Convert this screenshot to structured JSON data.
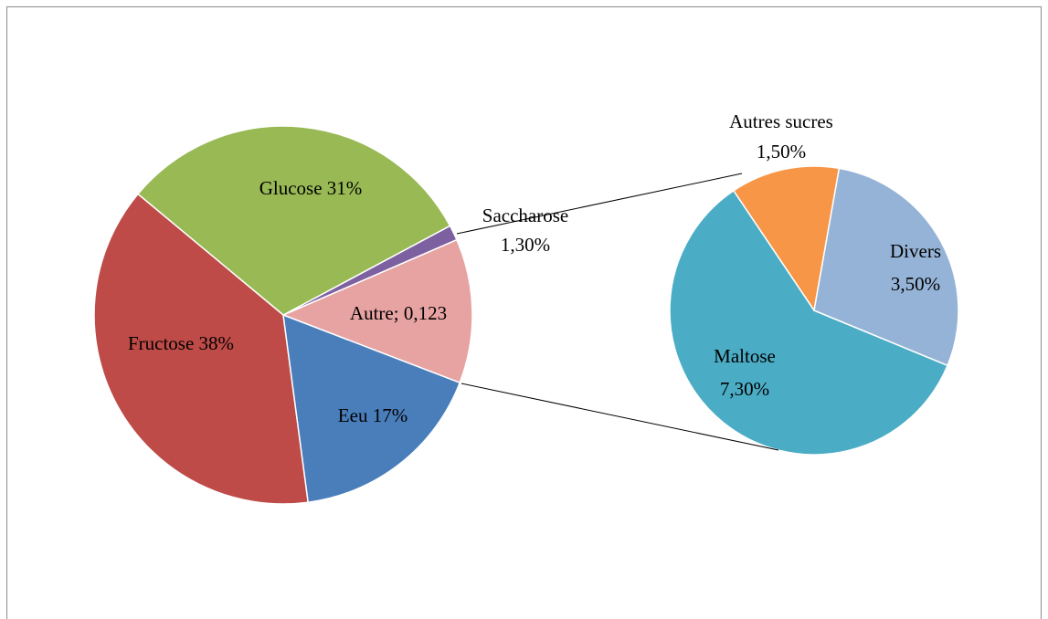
{
  "chart_data": {
    "type": "pie-of-pie",
    "pies": [
      {
        "values": [
          17,
          38,
          31,
          1.3,
          12.3
        ],
        "value_labels": [
          [
            "Eeu 17%"
          ],
          [
            "Fructose 38%"
          ],
          [
            "Glucose 31%"
          ],
          [
            "Saccharose",
            "1,30%"
          ],
          [
            "Autre; 0,123"
          ]
        ],
        "colors": [
          "#4a7ebb",
          "#be4b48",
          "#98b954",
          "#7d60a0",
          "#e6a3a2"
        ]
      },
      {
        "values": [
          3.5,
          7.3,
          1.5
        ],
        "value_labels": [
          [
            "Divers",
            "3,50%"
          ],
          [
            "Maltose",
            "7,30%"
          ],
          [
            "Autres sucres",
            "1,50%"
          ]
        ],
        "colors": [
          "#95b3d7",
          "#4bacc6",
          "#f79646"
        ]
      }
    ]
  }
}
